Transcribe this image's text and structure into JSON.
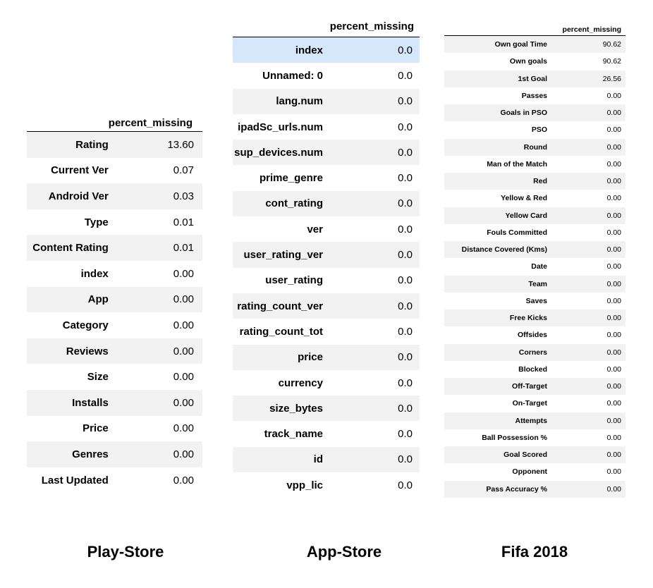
{
  "tables": {
    "play_store": {
      "column": "percent_missing",
      "rows": [
        {
          "label": "Rating",
          "value": "13.60"
        },
        {
          "label": "Current Ver",
          "value": "0.07"
        },
        {
          "label": "Android Ver",
          "value": "0.03"
        },
        {
          "label": "Type",
          "value": "0.01"
        },
        {
          "label": "Content Rating",
          "value": "0.01"
        },
        {
          "label": "index",
          "value": "0.00"
        },
        {
          "label": "App",
          "value": "0.00"
        },
        {
          "label": "Category",
          "value": "0.00"
        },
        {
          "label": "Reviews",
          "value": "0.00"
        },
        {
          "label": "Size",
          "value": "0.00"
        },
        {
          "label": "Installs",
          "value": "0.00"
        },
        {
          "label": "Price",
          "value": "0.00"
        },
        {
          "label": "Genres",
          "value": "0.00"
        },
        {
          "label": "Last Updated",
          "value": "0.00"
        }
      ]
    },
    "app_store": {
      "column": "percent_missing",
      "highlight_row": "index",
      "highlight_color": "#d5e8fb",
      "rows": [
        {
          "label": "index",
          "value": "0.0"
        },
        {
          "label": "Unnamed: 0",
          "value": "0.0"
        },
        {
          "label": "lang.num",
          "value": "0.0"
        },
        {
          "label": "ipadSc_urls.num",
          "value": "0.0"
        },
        {
          "label": "sup_devices.num",
          "value": "0.0"
        },
        {
          "label": "prime_genre",
          "value": "0.0"
        },
        {
          "label": "cont_rating",
          "value": "0.0"
        },
        {
          "label": "ver",
          "value": "0.0"
        },
        {
          "label": "user_rating_ver",
          "value": "0.0"
        },
        {
          "label": "user_rating",
          "value": "0.0"
        },
        {
          "label": "rating_count_ver",
          "value": "0.0"
        },
        {
          "label": "rating_count_tot",
          "value": "0.0"
        },
        {
          "label": "price",
          "value": "0.0"
        },
        {
          "label": "currency",
          "value": "0.0"
        },
        {
          "label": "size_bytes",
          "value": "0.0"
        },
        {
          "label": "track_name",
          "value": "0.0"
        },
        {
          "label": "id",
          "value": "0.0"
        },
        {
          "label": "vpp_lic",
          "value": "0.0"
        }
      ]
    },
    "fifa_2018": {
      "column": "percent_missing",
      "rows": [
        {
          "label": "Own goal Time",
          "value": "90.62"
        },
        {
          "label": "Own goals",
          "value": "90.62"
        },
        {
          "label": "1st Goal",
          "value": "26.56"
        },
        {
          "label": "Passes",
          "value": "0.00"
        },
        {
          "label": "Goals in PSO",
          "value": "0.00"
        },
        {
          "label": "PSO",
          "value": "0.00"
        },
        {
          "label": "Round",
          "value": "0.00"
        },
        {
          "label": "Man of the Match",
          "value": "0.00"
        },
        {
          "label": "Red",
          "value": "0.00"
        },
        {
          "label": "Yellow & Red",
          "value": "0.00"
        },
        {
          "label": "Yellow Card",
          "value": "0.00"
        },
        {
          "label": "Fouls Committed",
          "value": "0.00"
        },
        {
          "label": "Distance Covered (Kms)",
          "value": "0.00"
        },
        {
          "label": "Date",
          "value": "0.00"
        },
        {
          "label": "Team",
          "value": "0.00"
        },
        {
          "label": "Saves",
          "value": "0.00"
        },
        {
          "label": "Free Kicks",
          "value": "0.00"
        },
        {
          "label": "Offsides",
          "value": "0.00"
        },
        {
          "label": "Corners",
          "value": "0.00"
        },
        {
          "label": "Blocked",
          "value": "0.00"
        },
        {
          "label": "Off-Target",
          "value": "0.00"
        },
        {
          "label": "On-Target",
          "value": "0.00"
        },
        {
          "label": "Attempts",
          "value": "0.00"
        },
        {
          "label": "Ball Possession %",
          "value": "0.00"
        },
        {
          "label": "Goal Scored",
          "value": "0.00"
        },
        {
          "label": "Opponent",
          "value": "0.00"
        },
        {
          "label": "Pass Accuracy %",
          "value": "0.00"
        }
      ]
    }
  },
  "captions": {
    "play_store": "Play-Store",
    "app_store": "App-Store",
    "fifa_2018": "Fifa 2018"
  }
}
